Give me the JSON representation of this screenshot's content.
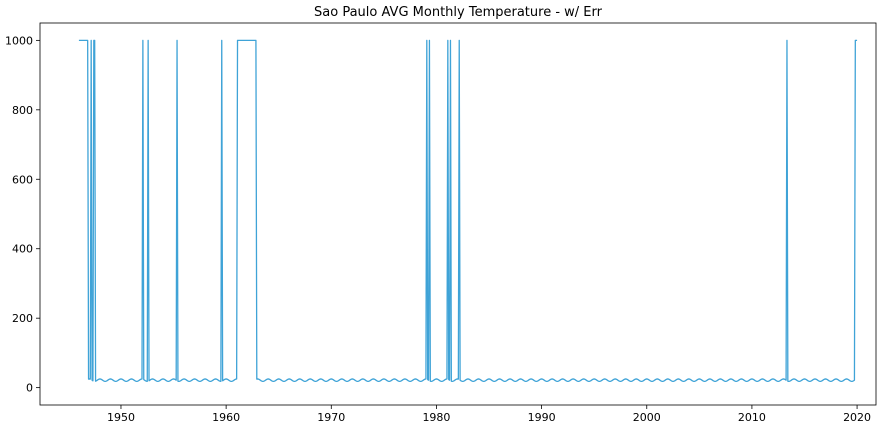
{
  "chart_data": {
    "type": "line",
    "title": "Sao Paulo AVG Monthly Temperature - w/ Err",
    "xlabel": "",
    "ylabel": "",
    "xlim": [
      1942.3,
      2021.8
    ],
    "ylim": [
      -50,
      1050
    ],
    "x_ticks": [
      1950,
      1960,
      1970,
      1980,
      1990,
      2000,
      2010,
      2020
    ],
    "y_ticks": [
      0,
      200,
      400,
      600,
      800,
      1000
    ],
    "grid": false,
    "legend": "none",
    "series_color": "#3fa3d7",
    "series": [
      {
        "x_start": 1946.0,
        "x_end": 2020.0,
        "baseline": {
          "mean": 21.5,
          "amplitude": 3.5,
          "period_years": 1.0
        },
        "error_segments": [
          [
            1946.0,
            1946.9
          ],
          [
            1947.1,
            1947.2
          ],
          [
            1947.4,
            1947.5
          ],
          [
            1952.0,
            1952.1
          ],
          [
            1952.5,
            1952.6
          ],
          [
            1955.3,
            1955.4
          ],
          [
            1959.5,
            1959.6
          ],
          [
            1961.0,
            1962.9
          ],
          [
            1979.0,
            1979.1
          ],
          [
            1979.3,
            1979.4
          ],
          [
            1981.0,
            1981.1
          ],
          [
            1981.3,
            1981.4
          ],
          [
            1982.1,
            1982.2
          ],
          [
            2013.3,
            2013.4
          ],
          [
            2019.8,
            2020.0
          ]
        ],
        "error_value": 1000
      }
    ]
  }
}
